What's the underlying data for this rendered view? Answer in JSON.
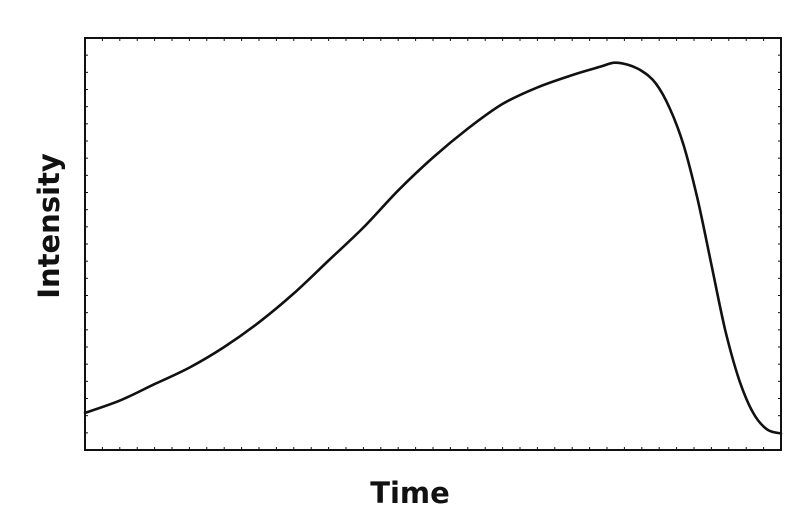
{
  "chart_data": {
    "type": "line",
    "title": "",
    "xlabel": "Time",
    "ylabel": "Intensity",
    "xlim": [
      0,
      1
    ],
    "ylim": [
      0,
      1
    ],
    "grid": false,
    "legend": "none",
    "series": [
      {
        "x": [
          0.0,
          0.05,
          0.1,
          0.15,
          0.2,
          0.25,
          0.3,
          0.35,
          0.4,
          0.45,
          0.5,
          0.55,
          0.6,
          0.65,
          0.7,
          0.74,
          0.76,
          0.78,
          0.8,
          0.82,
          0.84,
          0.86,
          0.88,
          0.9,
          0.92,
          0.94,
          0.96,
          0.98,
          1.0
        ],
        "y": [
          0.09,
          0.12,
          0.16,
          0.2,
          0.25,
          0.31,
          0.38,
          0.46,
          0.54,
          0.63,
          0.71,
          0.78,
          0.84,
          0.88,
          0.91,
          0.93,
          0.94,
          0.935,
          0.92,
          0.89,
          0.83,
          0.74,
          0.61,
          0.45,
          0.29,
          0.17,
          0.09,
          0.05,
          0.04
        ]
      }
    ]
  }
}
